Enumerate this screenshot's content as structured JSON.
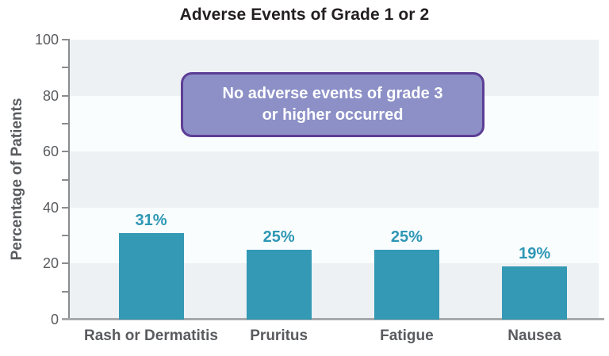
{
  "title": "Adverse Events of Grade 1 or 2",
  "annotation": {
    "lines": [
      "No adverse events of grade 3",
      "or higher occurred"
    ]
  },
  "chart_data": {
    "type": "bar",
    "title": "Adverse Events of Grade 1 or 2",
    "categories": [
      "Rash or Dermatitis",
      "Pruritus",
      "Fatigue",
      "Nausea"
    ],
    "values": [
      31,
      25,
      25,
      19
    ],
    "value_labels": [
      "31%",
      "25%",
      "25%",
      "19%"
    ],
    "xlabel": "",
    "ylabel": "Percentage of Patients",
    "ylim": [
      0,
      100
    ],
    "yticks_major": [
      0,
      20,
      40,
      60,
      80,
      100
    ],
    "yticks_minor": [
      10,
      30,
      50,
      70,
      90
    ],
    "grid": "off",
    "legend": "none",
    "background": "alternating horizontal stripes every 20 units",
    "annotation_text": "No adverse events of grade 3 or higher occurred"
  },
  "colors": {
    "bar": "#3399b4",
    "value_label": "#2e97b5",
    "band_dark": "#edf1f3",
    "band_light": "#fafdfd",
    "axis_line": "#8a8d90",
    "baseline": "#a7aaac",
    "tick": "#8a8d90",
    "tick_label": "#5a5c5f",
    "category_label": "#595b5e",
    "y_title": "#595b5e",
    "title": "#231f20",
    "annotation_fill": "#8c90c7",
    "annotation_border": "#5c3e95",
    "annotation_text": "#ffffff"
  }
}
